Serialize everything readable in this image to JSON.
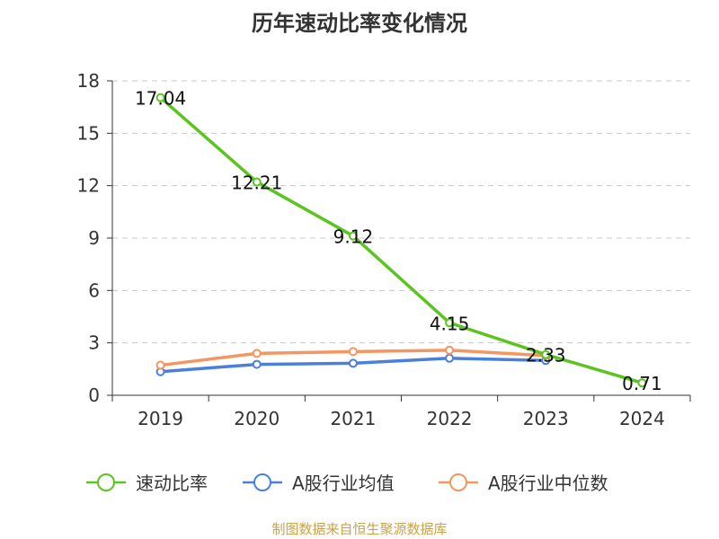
{
  "title": "历年速动比率变化情况",
  "source": "制图数据来自恒生聚源数据库",
  "chart_data": {
    "type": "line",
    "categories": [
      "2019",
      "2020",
      "2021",
      "2022",
      "2023",
      "2024"
    ],
    "ylim": [
      0,
      18
    ],
    "yticks": [
      0,
      3,
      6,
      9,
      12,
      15,
      18
    ],
    "grid": true,
    "legend_position": "bottom",
    "series": [
      {
        "name": "速动比率",
        "color": "#5ac421",
        "values": [
          17.04,
          12.21,
          9.12,
          4.15,
          2.33,
          0.71
        ],
        "labels": [
          "17.04",
          "12.21",
          "9.12",
          "4.15",
          "2.33",
          "0.71"
        ]
      },
      {
        "name": "A股行业均值",
        "color": "#4a7fdc",
        "values": [
          1.35,
          1.77,
          1.83,
          2.12,
          1.99,
          null
        ]
      },
      {
        "name": "A股行业中位数",
        "color": "#f5955f",
        "values": [
          1.72,
          2.4,
          2.5,
          2.58,
          2.27,
          null
        ]
      }
    ]
  }
}
